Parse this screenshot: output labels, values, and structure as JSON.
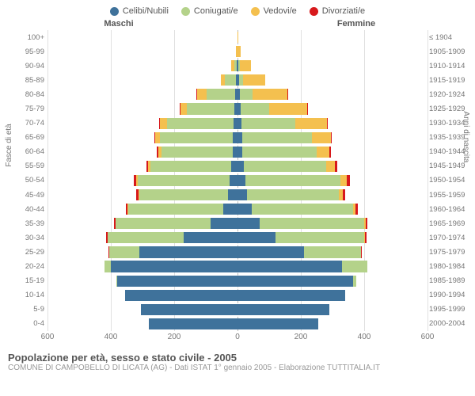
{
  "legend": [
    {
      "label": "Celibi/Nubili",
      "color": "#3f729b"
    },
    {
      "label": "Coniugati/e",
      "color": "#b4d28a"
    },
    {
      "label": "Vedovi/e",
      "color": "#f4c04f"
    },
    {
      "label": "Divorziati/e",
      "color": "#d7191c"
    }
  ],
  "gender_labels": {
    "left": "Maschi",
    "right": "Femmine"
  },
  "axis_titles": {
    "left": "Fasce di età",
    "right": "Anni di nascita"
  },
  "x_axis": {
    "max": 600,
    "ticks": [
      600,
      400,
      200,
      0,
      200,
      400,
      600
    ]
  },
  "colors": {
    "background": "#ffffff",
    "grid": "#e0e0e0",
    "center_line": "#bbbbbb",
    "text": "#555555",
    "muted": "#999999",
    "single": "#3f729b",
    "married": "#b4d28a",
    "widowed": "#f4c04f",
    "divorced": "#d7191c"
  },
  "rows": [
    {
      "age": "100+",
      "birth": "≤ 1904",
      "m": [
        0,
        0,
        0,
        0
      ],
      "f": [
        0,
        0,
        3,
        0
      ]
    },
    {
      "age": "95-99",
      "birth": "1905-1909",
      "m": [
        0,
        0,
        5,
        0
      ],
      "f": [
        0,
        0,
        10,
        0
      ]
    },
    {
      "age": "90-94",
      "birth": "1910-1914",
      "m": [
        3,
        8,
        8,
        0
      ],
      "f": [
        2,
        5,
        35,
        0
      ]
    },
    {
      "age": "85-89",
      "birth": "1915-1919",
      "m": [
        5,
        35,
        12,
        0
      ],
      "f": [
        5,
        12,
        70,
        0
      ]
    },
    {
      "age": "80-84",
      "birth": "1920-1924",
      "m": [
        8,
        90,
        30,
        2
      ],
      "f": [
        8,
        40,
        110,
        2
      ]
    },
    {
      "age": "75-79",
      "birth": "1925-1929",
      "m": [
        10,
        150,
        20,
        2
      ],
      "f": [
        10,
        90,
        120,
        2
      ]
    },
    {
      "age": "70-74",
      "birth": "1930-1934",
      "m": [
        12,
        210,
        22,
        3
      ],
      "f": [
        12,
        170,
        100,
        3
      ]
    },
    {
      "age": "65-69",
      "birth": "1935-1939",
      "m": [
        15,
        230,
        15,
        3
      ],
      "f": [
        14,
        220,
        60,
        3
      ]
    },
    {
      "age": "60-64",
      "birth": "1940-1944",
      "m": [
        16,
        225,
        10,
        3
      ],
      "f": [
        16,
        235,
        40,
        3
      ]
    },
    {
      "age": "55-59",
      "birth": "1945-1949",
      "m": [
        20,
        255,
        8,
        5
      ],
      "f": [
        20,
        260,
        28,
        6
      ]
    },
    {
      "age": "50-54",
      "birth": "1950-1954",
      "m": [
        25,
        290,
        6,
        6
      ],
      "f": [
        25,
        300,
        20,
        10
      ]
    },
    {
      "age": "45-49",
      "birth": "1955-1959",
      "m": [
        30,
        280,
        3,
        6
      ],
      "f": [
        30,
        290,
        12,
        8
      ]
    },
    {
      "age": "40-44",
      "birth": "1960-1964",
      "m": [
        45,
        300,
        2,
        6
      ],
      "f": [
        45,
        320,
        8,
        8
      ]
    },
    {
      "age": "35-39",
      "birth": "1965-1969",
      "m": [
        85,
        300,
        0,
        6
      ],
      "f": [
        70,
        330,
        5,
        6
      ]
    },
    {
      "age": "30-34",
      "birth": "1970-1974",
      "m": [
        170,
        240,
        0,
        4
      ],
      "f": [
        120,
        280,
        3,
        5
      ]
    },
    {
      "age": "25-29",
      "birth": "1975-1979",
      "m": [
        310,
        95,
        0,
        2
      ],
      "f": [
        210,
        180,
        0,
        3
      ]
    },
    {
      "age": "20-24",
      "birth": "1980-1984",
      "m": [
        400,
        20,
        0,
        0
      ],
      "f": [
        330,
        80,
        0,
        0
      ]
    },
    {
      "age": "15-19",
      "birth": "1985-1989",
      "m": [
        380,
        2,
        0,
        0
      ],
      "f": [
        365,
        10,
        0,
        0
      ]
    },
    {
      "age": "10-14",
      "birth": "1990-1994",
      "m": [
        355,
        0,
        0,
        0
      ],
      "f": [
        340,
        0,
        0,
        0
      ]
    },
    {
      "age": "5-9",
      "birth": "1995-1999",
      "m": [
        305,
        0,
        0,
        0
      ],
      "f": [
        290,
        0,
        0,
        0
      ]
    },
    {
      "age": "0-4",
      "birth": "2000-2004",
      "m": [
        280,
        0,
        0,
        0
      ],
      "f": [
        255,
        0,
        0,
        0
      ]
    }
  ],
  "footer": {
    "title": "Popolazione per età, sesso e stato civile - 2005",
    "subtitle": "COMUNE DI CAMPOBELLO DI LICATA (AG) - Dati ISTAT 1° gennaio 2005 - Elaborazione TUTTITALIA.IT"
  },
  "styling": {
    "bar_height_pct": 78,
    "font_family": "Arial",
    "title_fontsize": 13,
    "subtitle_fontsize": 10,
    "legend_fontsize": 11,
    "axis_label_fontsize": 9.5
  }
}
